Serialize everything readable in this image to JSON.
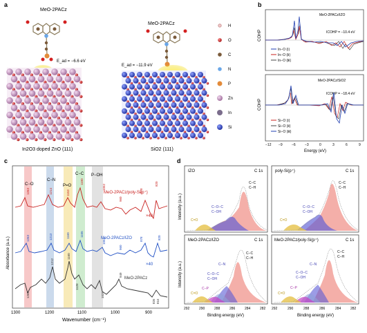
{
  "panel_a": {
    "letter": "a",
    "molecule_label": "MeO-2PACz",
    "left_energy": "E_ad = −6.6 eV",
    "right_energy": "E_ad = −11.9 eV",
    "left_caption": "In2O3 doped ZnO (111)",
    "right_caption": "SiO2 (111)",
    "legend": [
      {
        "symbol": "H",
        "color": "#f2c9c9"
      },
      {
        "symbol": "O",
        "color": "#d32020"
      },
      {
        "symbol": "C",
        "color": "#7a5a3a"
      },
      {
        "symbol": "N",
        "color": "#6aa7e8"
      },
      {
        "symbol": "P",
        "color": "#e38b3a"
      },
      {
        "symbol": "Zn",
        "color": "#b58ab0"
      },
      {
        "symbol": "In",
        "color": "#7b6d8c"
      },
      {
        "symbol": "Si",
        "color": "#2c3fb0"
      }
    ]
  },
  "panel_b": {
    "letter": "b",
    "top": {
      "title": "MeO-2PACz/IZO",
      "icohp": "ICOHP = −10.4 eV",
      "legend": [
        "In−O (Ⅰ)",
        "In−O (Ⅱ)",
        "In−O (Ⅲ)"
      ]
    },
    "bottom": {
      "title": "MeO-2PACz/SiO2",
      "icohp": "ICOHP = −18.4 eV",
      "legend": [
        "Si−O (Ⅰ)",
        "Si−O (Ⅱ)",
        "Si−O (Ⅲ)"
      ]
    },
    "ylabel": "COHP",
    "xlabel": "Energy (eV)",
    "xticks": [
      "−12",
      "−9",
      "−6",
      "−3",
      "0",
      "3",
      "6",
      "9"
    ]
  },
  "panel_c": {
    "letter": "c",
    "ylabel": "Absorbance (a.u.)",
    "xlabel": "Wavenumber (cm⁻¹)",
    "xticks": [
      "1300",
      "1200",
      "1100",
      "1000",
      "900"
    ],
    "bands": [
      {
        "label": "C−O",
        "color": "#f4b6b6"
      },
      {
        "label": "C−N",
        "color": "#b9cde6"
      },
      {
        "label": "P=O",
        "color": "#f6e3a0"
      },
      {
        "label": "C−C",
        "color": "#bfe6bf"
      },
      {
        "label": "P−OH",
        "color": "#d8d8d8"
      }
    ],
    "series": [
      {
        "name": "MeO-2PACz/poly-Si(p⁺)",
        "color": "#c8201e",
        "mult": "×40",
        "peaks": [
          "1263",
          "1214",
          "1153",
          "1100",
          "1052",
          "960",
          "878",
          "820"
        ]
      },
      {
        "name": "MeO-2PACz/IZO",
        "color": "#1f4fc4",
        "mult": "×40",
        "peaks": [
          "1263",
          "1213",
          "1160",
          "1105",
          "1052",
          "960",
          "878",
          "820"
        ]
      },
      {
        "name": "MeO-2PACz",
        "color": "#333333",
        "mult": "",
        "peaks": [
          "1263",
          "1212",
          "1160",
          "1128",
          "1025",
          "949",
          "826",
          "816"
        ]
      }
    ]
  },
  "panel_d": {
    "letter": "d",
    "ylabel": "Intensity (a.u.)",
    "xlabel": "Binding energy (eV)",
    "xticks": [
      "292",
      "290",
      "288",
      "286",
      "284",
      "282"
    ],
    "subpanels": [
      {
        "title": "IZO",
        "tag": "C 1s",
        "labels": [
          "C−C",
          "C−H",
          "C−O−C",
          "C−OH",
          "C=O"
        ]
      },
      {
        "title": "poly-Si(p⁺)",
        "tag": "C 1s",
        "labels": [
          "C−C",
          "C−H",
          "C−O−C",
          "C−OH",
          "C=O"
        ]
      },
      {
        "title": "MeO-2PACz/IZO",
        "tag": "C 1s",
        "labels": [
          "C−C",
          "C−H",
          "C−N",
          "C−O−C",
          "C−OH",
          "C−P",
          "C=O"
        ]
      },
      {
        "title": "MeO-2PACz/poly-Si(p⁺)",
        "tag": "C 1s",
        "labels": [
          "C−C",
          "C−H",
          "C−N",
          "C−O−C",
          "C−OH",
          "C−P",
          "C=O"
        ]
      }
    ]
  }
}
